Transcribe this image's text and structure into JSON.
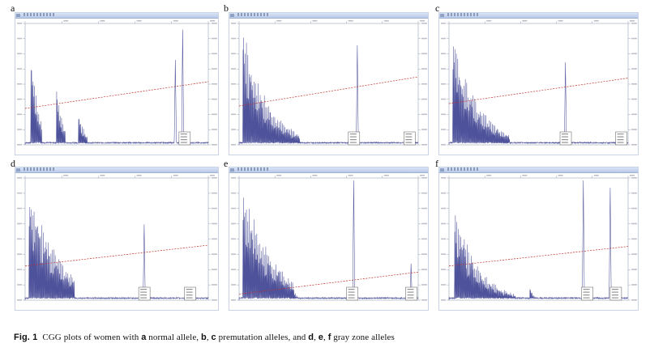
{
  "figure": {
    "panels": [
      {
        "letter": "a"
      },
      {
        "letter": "b"
      },
      {
        "letter": "c"
      },
      {
        "letter": "d"
      },
      {
        "letter": "e"
      },
      {
        "letter": "f"
      }
    ],
    "caption": {
      "figure_label": "Fig. 1",
      "text_1": "CGG plots of women with ",
      "bold_a": "a",
      "text_2": " normal allele, ",
      "bold_b": "b",
      "text_3": ", ",
      "bold_c": "c",
      "text_4": " premutation alleles, and ",
      "bold_d": "d",
      "text_5": ", ",
      "bold_e": "e",
      "text_6": ", ",
      "bold_f": "f",
      "text_7": " gray zone alleles"
    }
  },
  "colors": {
    "trace": "#3b3f8f",
    "trendline": "#c0302a",
    "frame": "#9aa3b5"
  }
}
